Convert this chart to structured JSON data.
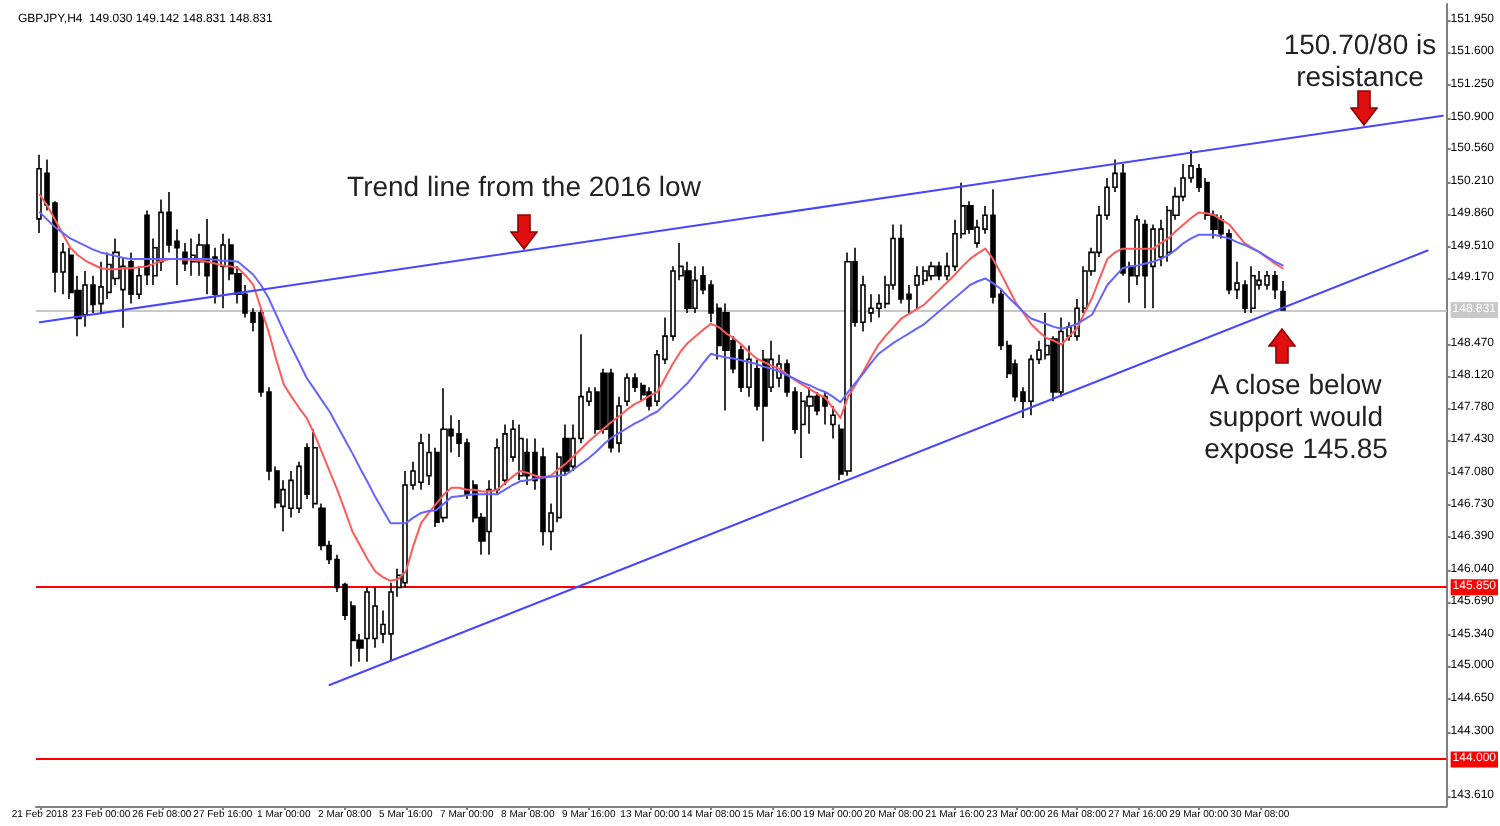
{
  "chart_data": {
    "type": "candlestick",
    "title": "GBPJPY,H4  149.030 149.142 148.831 148.831",
    "color": "#000000",
    "categories": [
      "21 Feb 2018",
      null,
      null,
      null,
      null,
      null,
      null,
      null,
      "23 Feb 00:00",
      null,
      null,
      null,
      null,
      null,
      null,
      null,
      "26 Feb 08:00",
      null,
      null,
      null,
      null,
      null,
      null,
      null,
      "27 Feb 16:00",
      null,
      null,
      null,
      null,
      null,
      null,
      null,
      "1 Mar 00:00",
      null,
      null,
      null,
      null,
      null,
      null,
      null,
      "2 Mar 08:00",
      null,
      null,
      null,
      null,
      null,
      null,
      null,
      "5 Mar 16:00",
      null,
      null,
      null,
      null,
      null,
      null,
      null,
      "7 Mar 00:00",
      null,
      null,
      null,
      null,
      null,
      null,
      null,
      "8 Mar 08:00",
      null,
      null,
      null,
      null,
      null,
      null,
      null,
      "9 Mar 16:00",
      null,
      null,
      null,
      null,
      null,
      null,
      null,
      "13 Mar 00:00",
      null,
      null,
      null,
      null,
      null,
      null,
      null,
      "14 Mar 08:00",
      null,
      null,
      null,
      null,
      null,
      null,
      null,
      "15 Mar 16:00",
      null,
      null,
      null,
      null,
      null,
      null,
      null,
      "19 Mar 00:00",
      null,
      null,
      null,
      null,
      null,
      null,
      null,
      "20 Mar 08:00",
      null,
      null,
      null,
      null,
      null,
      null,
      null,
      "21 Mar 16:00",
      null,
      null,
      null,
      null,
      null,
      null,
      null,
      "23 Mar 00:00",
      null,
      null,
      null,
      null,
      null,
      null,
      null,
      "26 Mar 08:00",
      null,
      null,
      null,
      null,
      null,
      null,
      null,
      "27 Mar 16:00",
      null,
      null,
      null,
      null,
      null,
      null,
      null,
      "29 Mar 00:00",
      null,
      null,
      null,
      null,
      null,
      null,
      null,
      "30 Mar 08:00",
      null,
      null,
      null,
      null,
      null,
      null,
      null,
      null,
      null,
      null,
      null,
      null,
      null,
      null,
      null,
      null,
      null,
      null,
      null,
      null,
      null,
      null,
      null,
      null
    ],
    "ohlc": [
      [
        149.81,
        150.5,
        149.66,
        150.35
      ],
      [
        150.3,
        150.45,
        149.9,
        149.96
      ],
      [
        149.98,
        150.0,
        149.02,
        149.24
      ],
      [
        149.24,
        149.55,
        149.0,
        149.45
      ],
      [
        149.42,
        149.5,
        148.95,
        149.02
      ],
      [
        149.04,
        149.2,
        148.55,
        148.74
      ],
      [
        148.78,
        149.25,
        148.65,
        149.1
      ],
      [
        149.1,
        149.2,
        148.8,
        148.89
      ],
      [
        148.9,
        149.35,
        148.8,
        149.08
      ],
      [
        149.02,
        149.45,
        148.95,
        149.32
      ],
      [
        149.17,
        149.6,
        149.1,
        149.45
      ],
      [
        149.05,
        149.4,
        148.64,
        149.3
      ],
      [
        149.35,
        149.45,
        148.9,
        149.0
      ],
      [
        149.0,
        149.3,
        148.95,
        149.2
      ],
      [
        149.85,
        149.9,
        149.1,
        149.21
      ],
      [
        149.2,
        149.6,
        149.1,
        149.5
      ],
      [
        149.35,
        150.02,
        149.25,
        149.88
      ],
      [
        149.88,
        150.1,
        149.45,
        149.53
      ],
      [
        149.57,
        149.7,
        149.1,
        149.5
      ],
      [
        149.45,
        149.55,
        149.25,
        149.33
      ],
      [
        149.35,
        149.6,
        149.2,
        149.42
      ],
      [
        149.35,
        149.65,
        149.2,
        149.53
      ],
      [
        149.53,
        149.81,
        149.0,
        149.2
      ],
      [
        149.4,
        149.5,
        148.9,
        149.0
      ],
      [
        149.3,
        149.65,
        148.85,
        149.53
      ],
      [
        149.53,
        149.6,
        149.15,
        149.22
      ],
      [
        149.22,
        149.3,
        148.9,
        149.0
      ],
      [
        149.0,
        149.1,
        148.75,
        148.8
      ],
      [
        148.8,
        148.85,
        148.6,
        148.7
      ],
      [
        148.8,
        148.85,
        147.9,
        147.95
      ],
      [
        147.95,
        148.0,
        147.0,
        147.1
      ],
      [
        147.1,
        147.15,
        146.7,
        146.76
      ],
      [
        146.72,
        147.0,
        146.45,
        146.9
      ],
      [
        146.7,
        147.1,
        146.6,
        147.0
      ],
      [
        146.7,
        147.2,
        146.65,
        147.15
      ],
      [
        147.35,
        147.4,
        146.8,
        146.85
      ],
      [
        146.75,
        147.55,
        146.7,
        147.35
      ],
      [
        146.7,
        146.75,
        146.25,
        146.3
      ],
      [
        146.3,
        146.35,
        146.1,
        146.15
      ],
      [
        146.15,
        146.2,
        145.8,
        145.85
      ],
      [
        145.88,
        145.9,
        145.5,
        145.55
      ],
      [
        145.65,
        145.7,
        145.0,
        145.28
      ],
      [
        145.28,
        145.35,
        145.05,
        145.2
      ],
      [
        145.3,
        145.85,
        145.05,
        145.8
      ],
      [
        145.3,
        145.85,
        145.2,
        145.65
      ],
      [
        145.35,
        145.6,
        145.25,
        145.45
      ],
      [
        145.35,
        145.9,
        145.06,
        145.8
      ],
      [
        145.85,
        146.05,
        145.75,
        145.98
      ],
      [
        145.9,
        147.1,
        145.85,
        146.95
      ],
      [
        146.95,
        147.2,
        146.9,
        147.1
      ],
      [
        146.98,
        147.5,
        146.9,
        147.4
      ],
      [
        147.05,
        147.5,
        146.95,
        147.3
      ],
      [
        147.3,
        147.35,
        146.5,
        146.55
      ],
      [
        146.6,
        147.99,
        146.55,
        147.55
      ],
      [
        147.55,
        147.7,
        147.3,
        147.48
      ],
      [
        147.5,
        147.65,
        147.25,
        147.4
      ],
      [
        147.4,
        147.45,
        146.8,
        146.85
      ],
      [
        146.95,
        147.0,
        146.55,
        146.6
      ],
      [
        146.6,
        146.65,
        146.2,
        146.35
      ],
      [
        146.45,
        147.0,
        146.2,
        146.9
      ],
      [
        146.9,
        147.45,
        146.85,
        147.35
      ],
      [
        147.0,
        147.6,
        146.95,
        147.5
      ],
      [
        147.25,
        147.65,
        147.2,
        147.55
      ],
      [
        147.05,
        147.6,
        147.0,
        147.45
      ],
      [
        147.3,
        147.45,
        146.95,
        147.05
      ],
      [
        147.3,
        147.45,
        146.9,
        147.0
      ],
      [
        147.25,
        147.35,
        146.3,
        146.45
      ],
      [
        146.45,
        146.75,
        146.25,
        146.65
      ],
      [
        146.6,
        147.3,
        146.55,
        147.25
      ],
      [
        147.45,
        147.6,
        147.05,
        147.1
      ],
      [
        147.15,
        147.6,
        147.1,
        147.45
      ],
      [
        147.45,
        148.57,
        147.4,
        147.9
      ],
      [
        147.85,
        148.0,
        147.8,
        147.95
      ],
      [
        147.95,
        148.0,
        147.5,
        147.55
      ],
      [
        148.15,
        148.2,
        147.5,
        147.55
      ],
      [
        148.15,
        148.2,
        147.3,
        147.35
      ],
      [
        147.4,
        147.9,
        147.3,
        147.8
      ],
      [
        147.85,
        148.15,
        147.8,
        148.1
      ],
      [
        148.1,
        148.15,
        147.95,
        148.0
      ],
      [
        148.02,
        148.05,
        147.85,
        147.92
      ],
      [
        147.95,
        148.0,
        147.75,
        147.8
      ],
      [
        147.85,
        148.4,
        147.8,
        148.35
      ],
      [
        148.3,
        148.75,
        148.25,
        148.55
      ],
      [
        148.55,
        149.3,
        148.5,
        149.25
      ],
      [
        149.2,
        149.55,
        149.15,
        149.3
      ],
      [
        149.25,
        149.35,
        148.8,
        148.85
      ],
      [
        148.85,
        149.3,
        148.8,
        149.15
      ],
      [
        149.2,
        149.3,
        149.0,
        149.05
      ],
      [
        149.1,
        149.15,
        148.7,
        148.8
      ],
      [
        148.85,
        148.9,
        148.3,
        148.45
      ],
      [
        148.8,
        148.9,
        147.75,
        148.4
      ],
      [
        148.5,
        148.55,
        148.15,
        148.2
      ],
      [
        148.4,
        148.45,
        147.95,
        148.0
      ],
      [
        148.0,
        148.45,
        147.9,
        148.3
      ],
      [
        148.2,
        148.3,
        147.75,
        147.8
      ],
      [
        148.3,
        148.4,
        147.42,
        147.8
      ],
      [
        148.0,
        148.5,
        147.95,
        148.3
      ],
      [
        148.1,
        148.35,
        148.0,
        148.25
      ],
      [
        148.25,
        148.3,
        147.9,
        147.95
      ],
      [
        147.95,
        148.0,
        147.5,
        147.55
      ],
      [
        147.6,
        147.95,
        147.24,
        147.85
      ],
      [
        147.8,
        148.0,
        147.5,
        147.9
      ],
      [
        147.9,
        147.95,
        147.7,
        147.75
      ],
      [
        147.9,
        147.95,
        147.6,
        147.8
      ],
      [
        147.6,
        147.8,
        147.45,
        147.7
      ],
      [
        147.55,
        147.6,
        147.0,
        147.07
      ],
      [
        147.1,
        149.45,
        147.05,
        149.35
      ],
      [
        149.35,
        149.5,
        148.65,
        148.7
      ],
      [
        148.7,
        149.2,
        148.6,
        149.1
      ],
      [
        148.8,
        149.0,
        148.7,
        148.85
      ],
      [
        148.85,
        149.0,
        148.75,
        148.9
      ],
      [
        148.9,
        149.2,
        148.85,
        149.1
      ],
      [
        149.1,
        149.75,
        149.05,
        149.6
      ],
      [
        149.6,
        149.75,
        148.9,
        148.95
      ],
      [
        149.0,
        149.1,
        148.8,
        148.95
      ],
      [
        149.1,
        149.3,
        148.85,
        149.2
      ],
      [
        149.15,
        149.3,
        149.1,
        149.25
      ],
      [
        149.2,
        149.35,
        149.15,
        149.3
      ],
      [
        149.3,
        149.35,
        149.15,
        149.2
      ],
      [
        149.2,
        149.45,
        149.15,
        149.3
      ],
      [
        149.3,
        149.8,
        149.25,
        149.65
      ],
      [
        149.65,
        150.2,
        149.6,
        149.95
      ],
      [
        149.95,
        150.0,
        149.65,
        149.7
      ],
      [
        149.55,
        149.8,
        149.5,
        149.72
      ],
      [
        149.7,
        149.95,
        149.65,
        149.85
      ],
      [
        149.85,
        150.13,
        148.9,
        148.97
      ],
      [
        149.0,
        149.05,
        148.4,
        148.45
      ],
      [
        148.45,
        148.5,
        148.1,
        148.15
      ],
      [
        148.25,
        148.3,
        147.85,
        147.9
      ],
      [
        147.95,
        148.0,
        147.67,
        147.85
      ],
      [
        147.85,
        148.35,
        147.7,
        148.3
      ],
      [
        148.3,
        148.5,
        148.25,
        148.4
      ],
      [
        148.35,
        148.8,
        148.3,
        148.45
      ],
      [
        148.52,
        148.55,
        147.85,
        147.95
      ],
      [
        147.95,
        148.75,
        147.9,
        148.6
      ],
      [
        148.55,
        148.7,
        148.5,
        148.65
      ],
      [
        148.55,
        148.95,
        148.5,
        148.85
      ],
      [
        148.85,
        149.3,
        148.8,
        149.25
      ],
      [
        149.25,
        149.5,
        149.2,
        149.45
      ],
      [
        149.45,
        149.95,
        149.4,
        149.85
      ],
      [
        149.85,
        150.25,
        149.8,
        150.15
      ],
      [
        150.15,
        150.45,
        150.1,
        150.3
      ],
      [
        150.3,
        150.4,
        149.2,
        149.23
      ],
      [
        149.3,
        149.35,
        148.91,
        149.2
      ],
      [
        149.2,
        149.85,
        149.1,
        149.8
      ],
      [
        149.75,
        149.8,
        148.85,
        149.2
      ],
      [
        149.3,
        149.75,
        148.85,
        149.7
      ],
      [
        149.4,
        149.8,
        149.3,
        149.7
      ],
      [
        149.45,
        149.95,
        149.35,
        149.9
      ],
      [
        149.85,
        150.15,
        149.8,
        150.05
      ],
      [
        150.05,
        150.4,
        150.0,
        150.25
      ],
      [
        150.25,
        150.55,
        150.2,
        150.38
      ],
      [
        150.35,
        150.4,
        150.1,
        150.15
      ],
      [
        150.2,
        150.25,
        149.8,
        149.85
      ],
      [
        149.85,
        149.9,
        149.6,
        149.7
      ],
      [
        149.8,
        149.85,
        149.6,
        149.65
      ],
      [
        149.65,
        149.7,
        149.0,
        149.05
      ],
      [
        149.05,
        149.35,
        148.95,
        149.12
      ],
      [
        149.1,
        149.15,
        148.8,
        148.85
      ],
      [
        148.85,
        149.3,
        148.8,
        149.2
      ],
      [
        149.1,
        149.25,
        149.05,
        149.15
      ],
      [
        149.1,
        149.25,
        149.05,
        149.2
      ],
      [
        149.2,
        149.25,
        148.95,
        149.05
      ],
      [
        149.03,
        149.142,
        148.831,
        148.831
      ],
      null,
      null,
      null,
      null,
      null,
      null,
      null,
      null,
      null,
      null,
      null,
      null,
      null,
      null,
      null,
      null,
      null,
      null,
      null,
      null,
      null
    ],
    "series": [
      {
        "type": "line",
        "color": "#ff5a5a",
        "values": [
          150.07,
          149.95,
          149.8,
          149.65,
          149.5,
          149.42,
          149.36,
          149.32,
          149.28,
          149.27,
          149.27,
          149.28,
          149.28,
          149.29,
          149.3,
          149.33,
          149.36,
          149.38,
          149.38,
          149.37,
          149.37,
          149.36,
          149.35,
          149.33,
          149.31,
          149.3,
          149.28,
          149.2,
          149.1,
          148.85,
          148.6,
          148.3,
          148.03,
          147.9,
          147.78,
          147.67,
          147.5,
          147.3,
          147.1,
          146.9,
          146.68,
          146.45,
          146.3,
          146.15,
          146.02,
          145.96,
          145.92,
          145.94,
          146.02,
          146.3,
          146.54,
          146.65,
          146.75,
          146.85,
          146.92,
          146.92,
          146.9,
          146.9,
          146.88,
          146.88,
          146.9,
          146.97,
          147.04,
          147.1,
          147.08,
          147.05,
          147.03,
          147.05,
          147.12,
          147.18,
          147.26,
          147.34,
          147.42,
          147.49,
          147.56,
          147.63,
          147.69,
          147.76,
          147.82,
          147.86,
          147.91,
          147.95,
          148.1,
          148.25,
          148.38,
          148.48,
          148.55,
          148.62,
          148.68,
          148.65,
          148.58,
          148.53,
          148.46,
          148.38,
          148.31,
          148.27,
          148.23,
          148.2,
          148.14,
          148.08,
          148.03,
          147.98,
          147.93,
          147.89,
          147.78,
          147.67,
          147.9,
          148.03,
          148.17,
          148.32,
          148.46,
          148.56,
          148.65,
          148.74,
          148.79,
          148.84,
          148.89,
          148.97,
          149.05,
          149.13,
          149.21,
          149.3,
          149.38,
          149.44,
          149.49,
          149.38,
          149.23,
          149.07,
          148.91,
          148.8,
          148.68,
          148.6,
          148.53,
          148.5,
          148.46,
          148.55,
          148.63,
          148.8,
          148.96,
          149.17,
          149.38,
          149.45,
          149.49,
          149.49,
          149.49,
          149.49,
          149.49,
          149.55,
          149.6,
          149.68,
          149.75,
          149.82,
          149.88,
          149.87,
          149.85,
          149.8,
          149.75,
          149.65,
          149.55,
          149.5,
          149.45,
          149.39,
          149.33,
          149.28,
          null,
          null,
          null,
          null,
          null,
          null,
          null,
          null,
          null,
          null,
          null,
          null,
          null,
          null,
          null,
          null,
          null,
          null,
          null,
          null,
          null
        ]
      },
      {
        "type": "line",
        "color": "#6464ff",
        "values": [
          149.88,
          149.8,
          149.72,
          149.66,
          149.6,
          149.56,
          149.52,
          149.48,
          149.45,
          149.43,
          149.41,
          149.39,
          149.38,
          149.38,
          149.38,
          149.38,
          149.38,
          149.38,
          149.38,
          149.38,
          149.38,
          149.38,
          149.38,
          149.37,
          149.36,
          149.36,
          149.35,
          149.28,
          149.21,
          149.1,
          148.96,
          148.78,
          148.6,
          148.43,
          148.27,
          148.1,
          147.98,
          147.86,
          147.74,
          147.59,
          147.44,
          147.29,
          147.13,
          146.98,
          146.82,
          146.68,
          146.54,
          146.54,
          146.54,
          146.6,
          146.65,
          146.67,
          146.68,
          146.75,
          146.82,
          146.83,
          146.84,
          146.85,
          146.85,
          146.85,
          146.85,
          146.9,
          146.95,
          146.99,
          147.0,
          147.02,
          147.03,
          147.04,
          147.05,
          147.06,
          147.12,
          147.18,
          147.24,
          147.31,
          147.39,
          147.46,
          147.51,
          147.56,
          147.61,
          147.65,
          147.7,
          147.74,
          147.82,
          147.89,
          147.97,
          148.05,
          148.15,
          148.26,
          148.36,
          148.34,
          148.32,
          148.31,
          148.29,
          148.27,
          148.25,
          148.22,
          148.2,
          148.17,
          148.13,
          148.09,
          148.05,
          148.02,
          147.98,
          147.95,
          147.9,
          147.84,
          147.95,
          148.05,
          148.15,
          148.26,
          148.36,
          148.42,
          148.48,
          148.53,
          148.58,
          148.63,
          148.68,
          148.75,
          148.82,
          148.89,
          148.96,
          149.03,
          149.1,
          149.14,
          149.17,
          149.12,
          149.06,
          148.97,
          148.89,
          148.81,
          148.74,
          148.71,
          148.68,
          148.65,
          148.63,
          148.65,
          148.68,
          148.73,
          148.78,
          148.94,
          149.1,
          149.19,
          149.28,
          149.3,
          149.31,
          149.33,
          149.35,
          149.38,
          149.42,
          149.48,
          149.55,
          149.6,
          149.64,
          149.64,
          149.64,
          149.62,
          149.6,
          149.56,
          149.53,
          149.49,
          149.45,
          149.4,
          149.35,
          149.31,
          null,
          null,
          null,
          null,
          null,
          null,
          null,
          null,
          null,
          null,
          null,
          null,
          null,
          null,
          null,
          null,
          null,
          null,
          null,
          null,
          null
        ]
      },
      {
        "type": "line",
        "color": "#4646ff",
        "values": [
          148.7,
          null,
          null,
          null,
          null,
          null,
          null,
          null,
          null,
          null,
          null,
          null,
          null,
          null,
          null,
          null,
          null,
          null,
          null,
          null,
          null,
          null,
          null,
          null,
          null,
          null,
          null,
          null,
          null,
          null,
          null,
          null,
          null,
          null,
          null,
          null,
          null,
          null,
          null,
          null,
          null,
          null,
          null,
          null,
          null,
          null,
          null,
          null,
          null,
          null,
          null,
          null,
          null,
          null,
          null,
          null,
          null,
          null,
          null,
          null,
          null,
          null,
          null,
          null,
          null,
          null,
          null,
          null,
          null,
          null,
          null,
          null,
          null,
          null,
          null,
          null,
          null,
          null,
          null,
          null,
          null,
          null,
          null,
          null,
          null,
          null,
          null,
          null,
          null,
          null,
          null,
          null,
          null,
          null,
          null,
          null,
          null,
          null,
          null,
          null,
          null,
          null,
          null,
          null,
          null,
          null,
          null,
          null,
          null,
          null,
          null,
          null,
          null,
          null,
          null,
          null,
          null,
          null,
          null,
          null,
          null,
          null,
          null,
          null,
          null,
          null,
          null,
          null,
          null,
          null,
          null,
          null,
          null,
          null,
          null,
          null,
          null,
          null,
          null,
          null,
          null,
          null,
          null,
          null,
          null,
          null,
          null,
          null,
          null,
          null,
          null,
          null,
          null,
          null,
          null,
          null,
          null,
          null,
          null,
          null,
          null,
          null,
          null,
          null,
          null,
          null,
          null,
          null,
          null,
          null,
          null,
          null,
          null,
          null,
          null,
          null,
          null,
          null,
          null,
          null,
          null,
          null,
          null,
          null,
          150.92
        ]
      },
      {
        "type": "line",
        "color": "#4646ff",
        "values": [
          null,
          null,
          null,
          null,
          null,
          null,
          null,
          null,
          null,
          null,
          null,
          null,
          null,
          null,
          null,
          null,
          null,
          null,
          null,
          null,
          null,
          null,
          null,
          null,
          null,
          null,
          null,
          null,
          null,
          null,
          null,
          null,
          null,
          null,
          null,
          null,
          null,
          null,
          144.8,
          null,
          null,
          null,
          null,
          null,
          null,
          null,
          null,
          null,
          null,
          null,
          null,
          null,
          null,
          null,
          null,
          null,
          null,
          null,
          null,
          null,
          null,
          null,
          null,
          null,
          null,
          null,
          null,
          null,
          null,
          null,
          null,
          null,
          null,
          null,
          null,
          null,
          null,
          null,
          null,
          null,
          null,
          null,
          null,
          null,
          null,
          null,
          null,
          null,
          null,
          null,
          null,
          null,
          null,
          null,
          null,
          null,
          null,
          null,
          null,
          null,
          null,
          null,
          null,
          null,
          null,
          null,
          null,
          null,
          null,
          null,
          null,
          null,
          null,
          null,
          null,
          null,
          null,
          null,
          null,
          null,
          null,
          null,
          null,
          null,
          null,
          null,
          null,
          null,
          null,
          null,
          null,
          null,
          null,
          null,
          null,
          null,
          null,
          null,
          null,
          null,
          null,
          null,
          null,
          null,
          null,
          null,
          null,
          null,
          null,
          null,
          null,
          null,
          null,
          null,
          null,
          null,
          null,
          null,
          null,
          null,
          null,
          null,
          null,
          null,
          null,
          null,
          null,
          null,
          null,
          null,
          null,
          null,
          null,
          null,
          null,
          null,
          null,
          null,
          null,
          null,
          null,
          null,
          149.47,
          null,
          null
        ]
      }
    ],
    "ylim": [
      143.5,
      152.12
    ],
    "yticks": [
      {
        "value": 151.95,
        "label": "151.950"
      },
      {
        "value": 151.6,
        "label": "151.600"
      },
      {
        "value": 151.25,
        "label": "151.250"
      },
      {
        "value": 150.9,
        "label": "150.900"
      },
      {
        "value": 150.56,
        "label": "150.560"
      },
      {
        "value": 150.21,
        "label": "150.210"
      },
      {
        "value": 149.86,
        "label": "149.860"
      },
      {
        "value": 149.51,
        "label": "149.510"
      },
      {
        "value": 149.17,
        "label": "149.170"
      },
      {
        "value": 148.47,
        "label": "148.470"
      },
      {
        "value": 148.12,
        "label": "148.120"
      },
      {
        "value": 147.78,
        "label": "147.780"
      },
      {
        "value": 147.43,
        "label": "147.430"
      },
      {
        "value": 147.08,
        "label": "147.080"
      },
      {
        "value": 146.73,
        "label": "146.730"
      },
      {
        "value": 146.39,
        "label": "146.390"
      },
      {
        "value": 146.04,
        "label": "146.040"
      },
      {
        "value": 145.69,
        "label": "145.690"
      },
      {
        "value": 145.34,
        "label": "145.340"
      },
      {
        "value": 145.0,
        "label": "145.000"
      },
      {
        "value": 144.65,
        "label": "144.650"
      },
      {
        "value": 144.3,
        "label": "144.300"
      },
      {
        "value": 143.61,
        "label": "143.610"
      }
    ],
    "ref_lines": [
      {
        "axis": "y",
        "value": 148.831,
        "label": "148.831",
        "color": "#c8c8c8"
      },
      {
        "axis": "y",
        "value": 145.85,
        "label": "145.850",
        "color": "#ff0000"
      },
      {
        "axis": "y",
        "value": 144.0,
        "label": "144.000",
        "color": "#ff0000"
      }
    ],
    "annotations": [
      "Trend line from the 2016 low",
      "150.70/80 is resistance",
      "A close below support would expose 145.85"
    ],
    "grid": false
  }
}
